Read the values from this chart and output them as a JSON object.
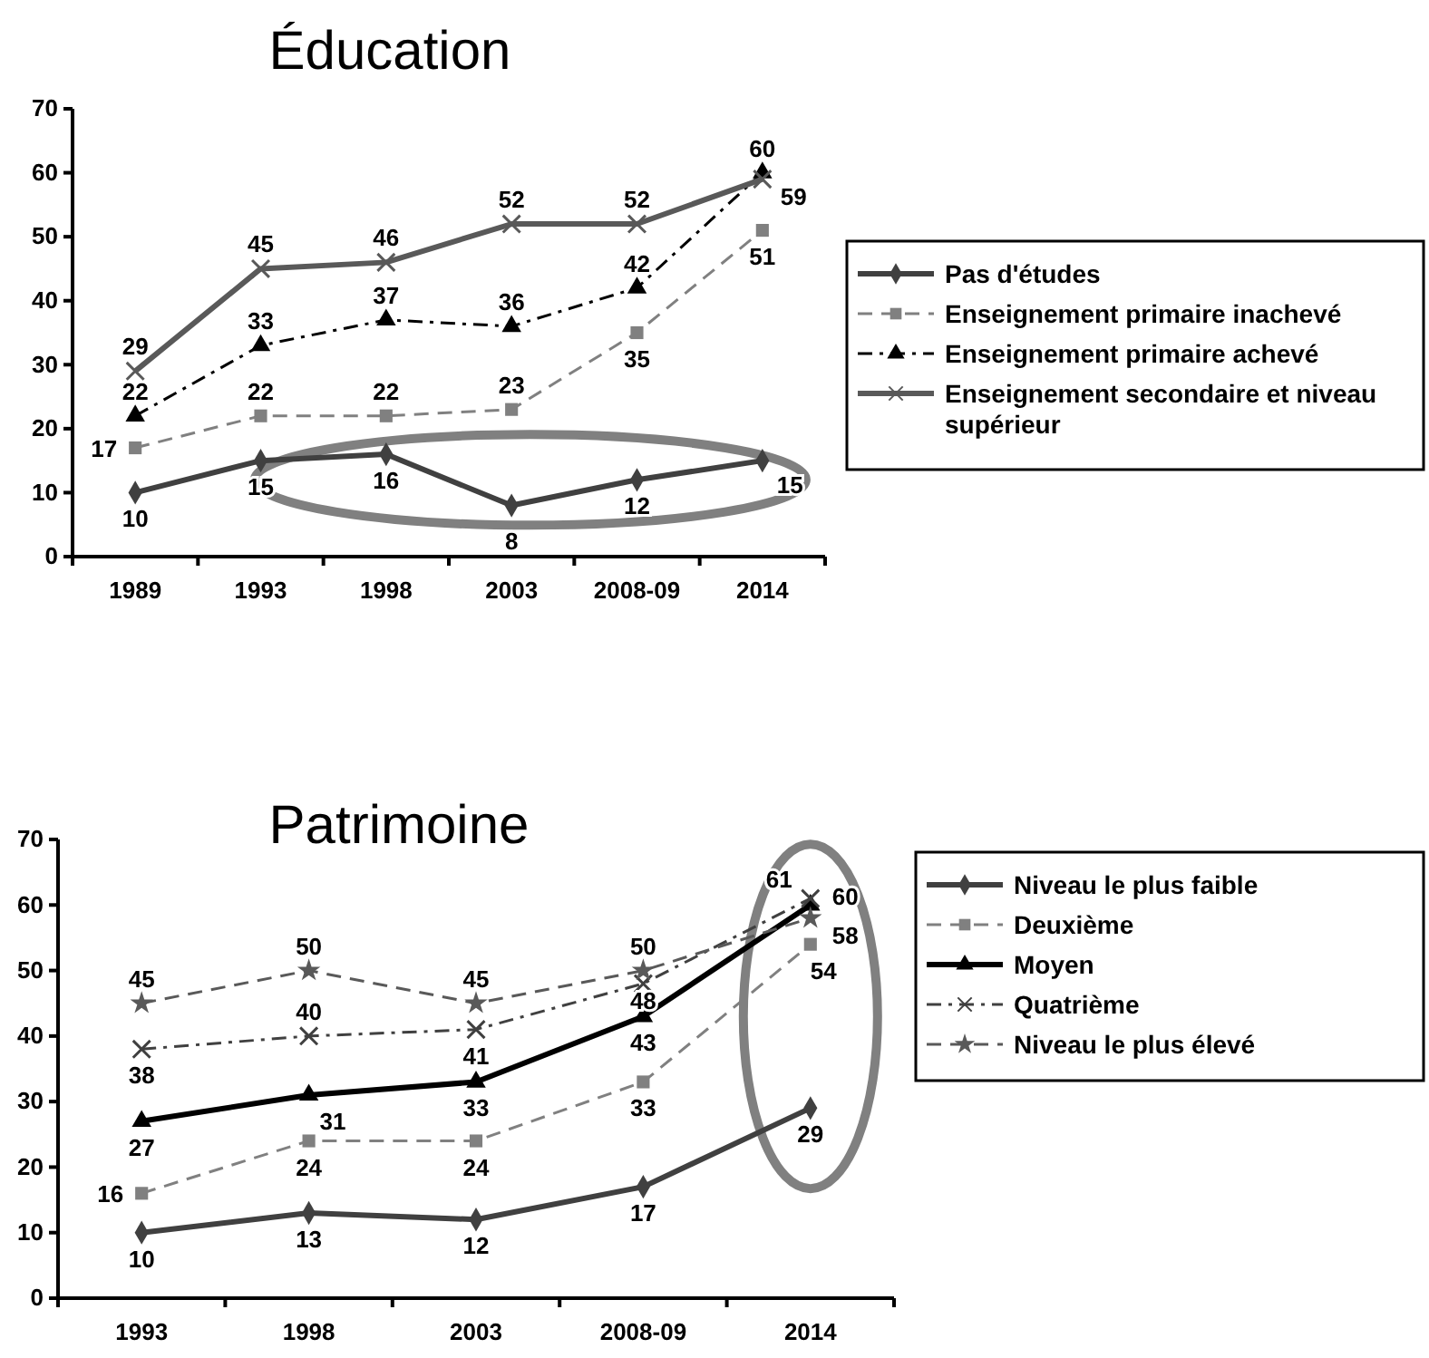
{
  "chart_data": [
    {
      "type": "line",
      "title": "Éducation",
      "categories": [
        "1989",
        "1993",
        "1998",
        "2003",
        "2008-09",
        "2014"
      ],
      "ylim": [
        0,
        70
      ],
      "yticks": [
        0,
        10,
        20,
        30,
        40,
        50,
        60,
        70
      ],
      "grid": false,
      "legend": "right",
      "data_labels": true,
      "series": [
        {
          "name": "Pas d'études",
          "color": "#404040",
          "marker": "diamond",
          "line_style": "solid",
          "values": [
            10,
            15,
            16,
            8,
            12,
            15
          ]
        },
        {
          "name": "Enseignement primaire inachevé",
          "color": "#808080",
          "marker": "square",
          "line_style": "dashed",
          "values": [
            17,
            22,
            22,
            23,
            35,
            51
          ]
        },
        {
          "name": "Enseignement primaire achevé",
          "color": "#000000",
          "marker": "triangle",
          "line_style": "dashdot",
          "values": [
            22,
            33,
            37,
            36,
            42,
            60
          ]
        },
        {
          "name": "Enseignement secondaire et niveau supérieur",
          "color": "#595959",
          "marker": "cross",
          "line_style": "solid",
          "values": [
            29,
            45,
            46,
            52,
            52,
            59
          ]
        }
      ]
    },
    {
      "type": "line",
      "title": "Patrimoine",
      "categories": [
        "1993",
        "1998",
        "2003",
        "2008-09",
        "2014"
      ],
      "ylim": [
        0,
        70
      ],
      "yticks": [
        0,
        10,
        20,
        30,
        40,
        50,
        60,
        70
      ],
      "grid": false,
      "legend": "right",
      "data_labels": true,
      "series": [
        {
          "name": "Niveau le plus faible",
          "color": "#404040",
          "marker": "diamond",
          "line_style": "solid",
          "values": [
            10,
            13,
            12,
            17,
            29
          ]
        },
        {
          "name": "Deuxième",
          "color": "#808080",
          "marker": "square",
          "line_style": "dashed",
          "values": [
            16,
            24,
            24,
            33,
            54
          ]
        },
        {
          "name": "Moyen",
          "color": "#000000",
          "marker": "triangle",
          "line_style": "solid",
          "values": [
            27,
            31,
            33,
            43,
            60
          ]
        },
        {
          "name": "Quatrième",
          "color": "#404040",
          "marker": "cross",
          "line_style": "dashdot",
          "values": [
            38,
            40,
            41,
            48,
            61
          ]
        },
        {
          "name": "Niveau le plus élevé",
          "color": "#595959",
          "marker": "star",
          "line_style": "dashed",
          "values": [
            45,
            50,
            45,
            50,
            58
          ]
        }
      ]
    }
  ]
}
